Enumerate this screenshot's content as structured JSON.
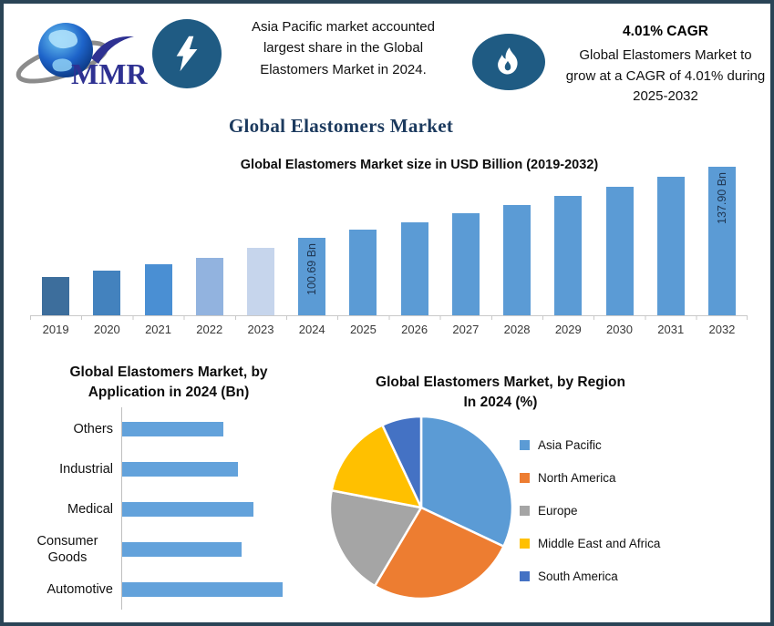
{
  "frame": {
    "border_color": "#2A4456",
    "background": "#FFFFFF"
  },
  "header": {
    "logo_text": "MMR",
    "logo_color": "#2E3192",
    "badge_color": "#1F5B83",
    "highlight_lines": [
      "Asia Pacific market accounted",
      "largest share in the Global",
      "Elastomers Market in 2024."
    ],
    "cagr_title": "4.01% CAGR",
    "cagr_lines": [
      "Global Elastomers Market to",
      "grow at a CAGR of 4.01% during",
      "2025-2032"
    ]
  },
  "main_title": "Global Elastomers Market",
  "chart_data": [
    {
      "type": "bar",
      "title": "Global Elastomers Market size in USD Billion (2019-2032)",
      "categories": [
        "2019",
        "2020",
        "2021",
        "2022",
        "2023",
        "2024",
        "2025",
        "2026",
        "2027",
        "2028",
        "2029",
        "2030",
        "2031",
        "2032"
      ],
      "values": [
        80.2,
        83.6,
        86.9,
        90.2,
        95.5,
        100.69,
        104.7,
        108.9,
        113.3,
        117.8,
        122.6,
        127.5,
        132.6,
        137.9
      ],
      "data_labels": {
        "2024": "100.69 Bn",
        "2032": "137.90 Bn"
      },
      "bar_colors": [
        "#3D6E9C",
        "#4382BE",
        "#4A8FD3",
        "#92B3DF",
        "#C6D5EC",
        "#5B9BD5",
        "#5B9BD5",
        "#5B9BD5",
        "#5B9BD5",
        "#5B9BD5",
        "#5B9BD5",
        "#5B9BD5",
        "#5B9BD5",
        "#5B9BD5"
      ],
      "ylim": [
        60,
        145
      ],
      "xlabel": "",
      "ylabel": "",
      "grid": false,
      "legend_position": "none"
    },
    {
      "type": "bar",
      "orientation": "horizontal",
      "title": "Global Elastomers Market, by Application in 2024 (Bn)",
      "title_lines": [
        "Global Elastomers Market, by",
        "Application in 2024 (Bn)"
      ],
      "categories": [
        "Others",
        "Industrial",
        "Medical",
        "Consumer Goods",
        "Automotive"
      ],
      "values": [
        16.2,
        18.6,
        21.0,
        19.2,
        25.8
      ],
      "bar_color": "#63A2DB",
      "xlim": [
        0,
        31
      ],
      "grid": false,
      "legend_position": "none"
    },
    {
      "type": "pie",
      "title": "Global Elastomers Market, by Region In 2024 (%)",
      "title_lines": [
        "Global Elastomers Market, by Region",
        "In 2024 (%)"
      ],
      "labels": [
        "Asia Pacific",
        "North America",
        "Europe",
        "Middle East and Africa",
        "South America"
      ],
      "values": [
        32,
        26.5,
        19.5,
        15,
        7
      ],
      "colors": [
        "#5B9BD5",
        "#ED7D31",
        "#A5A5A5",
        "#FFC000",
        "#4472C4"
      ],
      "start_angle": 90,
      "direction": "clockwise",
      "legend_position": "right"
    }
  ]
}
